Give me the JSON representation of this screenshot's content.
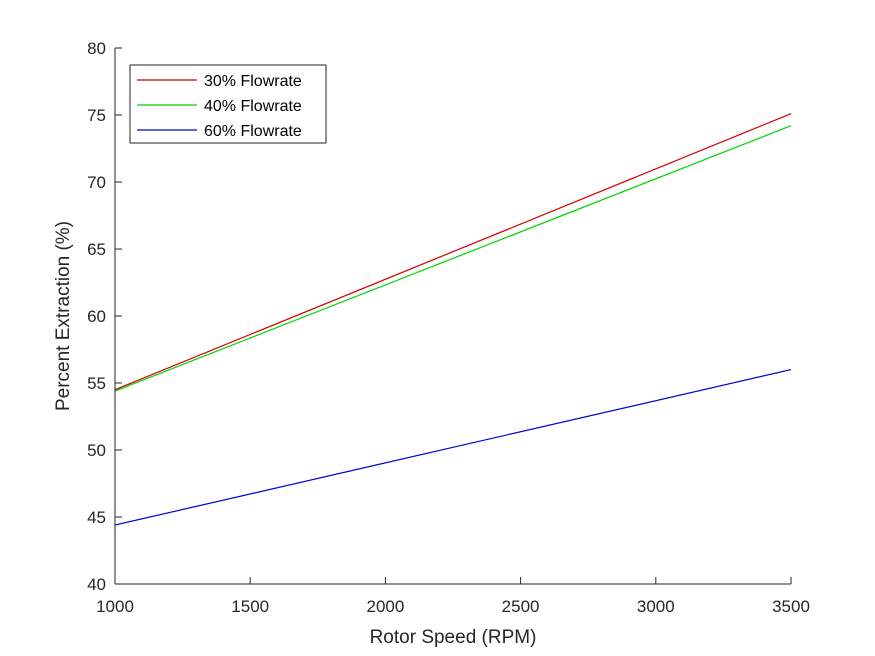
{
  "chart_data": {
    "type": "line",
    "title": "",
    "xlabel": "Rotor Speed (RPM)",
    "ylabel": "Percent Extraction (%)",
    "xlim": [
      1000,
      3500
    ],
    "ylim": [
      40,
      80
    ],
    "xticks": [
      1000,
      1500,
      2000,
      2500,
      3000,
      3500
    ],
    "yticks": [
      40,
      45,
      50,
      55,
      60,
      65,
      70,
      75,
      80
    ],
    "grid": false,
    "legend_position": "top-left",
    "series": [
      {
        "name": "30% Flowrate",
        "color": "#d40000",
        "x": [
          1000,
          3500
        ],
        "y": [
          54.5,
          75.1
        ]
      },
      {
        "name": "40% Flowrate",
        "color": "#00d400",
        "x": [
          1000,
          3500
        ],
        "y": [
          54.4,
          74.2
        ]
      },
      {
        "name": "60% Flowrate",
        "color": "#0000d4",
        "x": [
          1000,
          3500
        ],
        "y": [
          44.4,
          56.0
        ]
      }
    ]
  }
}
